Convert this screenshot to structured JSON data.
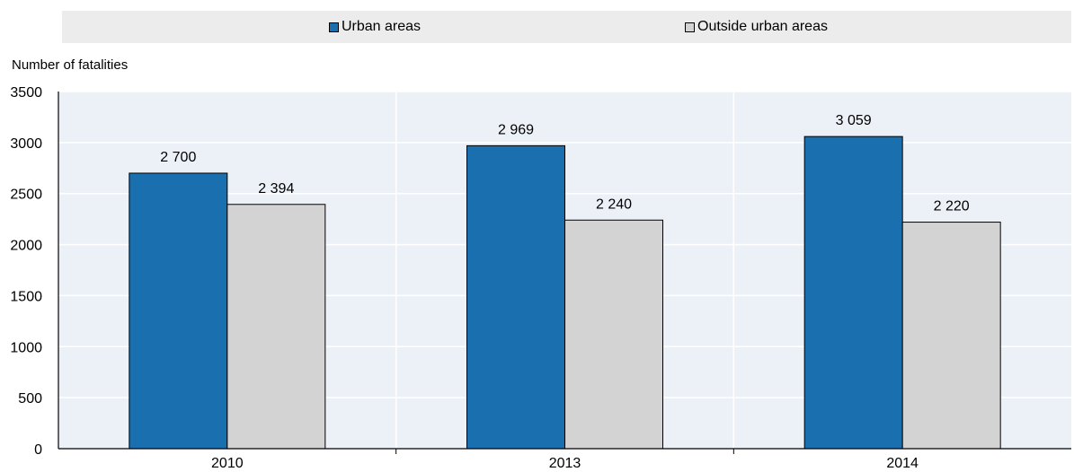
{
  "chart_data": {
    "type": "bar",
    "title": "",
    "xlabel": "",
    "ylabel": "Number of fatalities",
    "categories": [
      "2010",
      "2013",
      "2014"
    ],
    "series": [
      {
        "name": "Urban areas",
        "color": "#1a6faf",
        "values": [
          2700,
          2969,
          3059
        ],
        "labels": [
          "2 700",
          "2 969",
          "3 059"
        ]
      },
      {
        "name": "Outside urban areas",
        "color": "#d3d3d3",
        "values": [
          2394,
          2240,
          2220
        ],
        "labels": [
          "2 394",
          "2 240",
          "2 220"
        ]
      }
    ],
    "ylim": [
      0,
      3500
    ],
    "yticks": [
      "0",
      "500",
      "1000",
      "1500",
      "2000",
      "2500",
      "3000",
      "3500"
    ],
    "grid": true,
    "plot_background": "#ecf1f8",
    "legend_position": "top"
  }
}
